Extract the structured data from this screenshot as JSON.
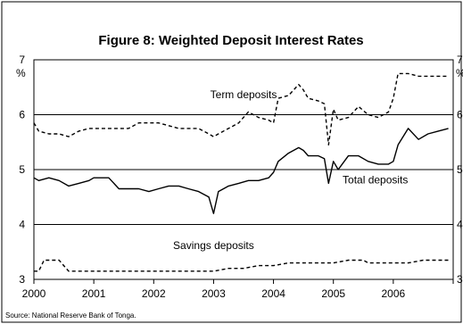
{
  "chart_data": {
    "type": "line",
    "title": "Figure 8: Weighted Deposit Interest Rates",
    "ylabel_left": "%",
    "ylabel_right": "%",
    "xlabel": "",
    "xlim": [
      2000,
      2007
    ],
    "ylim": [
      3,
      7
    ],
    "x_ticks": [
      2000,
      2001,
      2002,
      2003,
      2004,
      2005,
      2006
    ],
    "y_ticks": [
      3,
      4,
      5,
      6,
      7
    ],
    "grid": "horizontal",
    "legend": "none",
    "source": "Source: National Reserve Bank of Tonga.",
    "series": [
      {
        "name": "Term deposits",
        "style": "dashed",
        "color": "#000000",
        "x": [
          2000.0,
          2000.08,
          2000.25,
          2000.42,
          2000.58,
          2000.75,
          2000.92,
          2001.08,
          2001.25,
          2001.42,
          2001.58,
          2001.75,
          2001.92,
          2002.08,
          2002.25,
          2002.42,
          2002.58,
          2002.75,
          2002.92,
          2003.0,
          2003.08,
          2003.25,
          2003.42,
          2003.58,
          2003.75,
          2003.92,
          2004.0,
          2004.08,
          2004.25,
          2004.42,
          2004.5,
          2004.58,
          2004.75,
          2004.85,
          2004.92,
          2005.0,
          2005.08,
          2005.25,
          2005.42,
          2005.58,
          2005.75,
          2005.92,
          2006.0,
          2006.08,
          2006.25,
          2006.42,
          2006.58,
          2006.75,
          2006.92
        ],
        "y": [
          5.85,
          5.7,
          5.65,
          5.65,
          5.6,
          5.7,
          5.75,
          5.75,
          5.75,
          5.75,
          5.75,
          5.85,
          5.85,
          5.85,
          5.8,
          5.75,
          5.75,
          5.75,
          5.65,
          5.6,
          5.65,
          5.75,
          5.85,
          6.05,
          5.95,
          5.9,
          5.85,
          6.3,
          6.35,
          6.55,
          6.45,
          6.3,
          6.25,
          6.2,
          5.45,
          6.1,
          5.9,
          5.95,
          6.15,
          6.0,
          5.95,
          6.05,
          6.3,
          6.75,
          6.75,
          6.7,
          6.7,
          6.7,
          6.7
        ]
      },
      {
        "name": "Total deposits",
        "style": "solid",
        "color": "#000000",
        "x": [
          2000.0,
          2000.08,
          2000.25,
          2000.42,
          2000.58,
          2000.75,
          2000.92,
          2001.0,
          2001.08,
          2001.25,
          2001.42,
          2001.58,
          2001.75,
          2001.92,
          2002.08,
          2002.25,
          2002.42,
          2002.58,
          2002.75,
          2002.92,
          2003.0,
          2003.08,
          2003.25,
          2003.42,
          2003.58,
          2003.75,
          2003.92,
          2004.0,
          2004.08,
          2004.25,
          2004.42,
          2004.5,
          2004.58,
          2004.75,
          2004.85,
          2004.92,
          2005.0,
          2005.08,
          2005.25,
          2005.42,
          2005.58,
          2005.75,
          2005.92,
          2006.0,
          2006.08,
          2006.25,
          2006.42,
          2006.58,
          2006.75,
          2006.92
        ],
        "y": [
          4.85,
          4.8,
          4.85,
          4.8,
          4.7,
          4.75,
          4.8,
          4.85,
          4.85,
          4.85,
          4.65,
          4.65,
          4.65,
          4.6,
          4.65,
          4.7,
          4.7,
          4.65,
          4.6,
          4.5,
          4.2,
          4.6,
          4.7,
          4.75,
          4.8,
          4.8,
          4.85,
          4.95,
          5.15,
          5.3,
          5.4,
          5.35,
          5.25,
          5.25,
          5.2,
          4.75,
          5.15,
          5.0,
          5.25,
          5.25,
          5.15,
          5.1,
          5.1,
          5.15,
          5.45,
          5.75,
          5.55,
          5.65,
          5.7,
          5.75
        ]
      },
      {
        "name": "Savings deposits",
        "style": "dashed",
        "color": "#000000",
        "x": [
          2000.0,
          2000.08,
          2000.17,
          2000.25,
          2000.42,
          2000.58,
          2000.75,
          2001.0,
          2001.25,
          2001.5,
          2001.75,
          2002.0,
          2002.25,
          2002.5,
          2002.75,
          2003.0,
          2003.25,
          2003.5,
          2003.75,
          2004.0,
          2004.25,
          2004.5,
          2004.75,
          2005.0,
          2005.25,
          2005.5,
          2005.58,
          2005.75,
          2006.0,
          2006.25,
          2006.5,
          2006.75,
          2006.92
        ],
        "y": [
          3.15,
          3.15,
          3.35,
          3.35,
          3.35,
          3.15,
          3.15,
          3.15,
          3.15,
          3.15,
          3.15,
          3.15,
          3.15,
          3.15,
          3.15,
          3.15,
          3.2,
          3.2,
          3.25,
          3.25,
          3.3,
          3.3,
          3.3,
          3.3,
          3.35,
          3.35,
          3.3,
          3.3,
          3.3,
          3.3,
          3.35,
          3.35,
          3.35
        ]
      }
    ],
    "annotations": [
      {
        "text": "Term deposits",
        "x": 2003.5,
        "y": 6.3
      },
      {
        "text": "Total deposits",
        "x": 2005.7,
        "y": 4.75
      },
      {
        "text": "Savings deposits",
        "x": 2003.0,
        "y": 3.55
      }
    ]
  }
}
